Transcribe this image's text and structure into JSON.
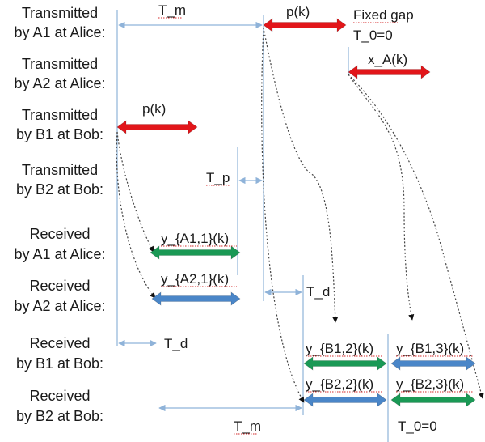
{
  "rows": [
    {
      "line1": "Transmitted",
      "line2": "by A1 at Alice:"
    },
    {
      "line1": "Transmitted",
      "line2": "by A2 at Alice:"
    },
    {
      "line1": "Transmitted",
      "line2": "by B1 at Bob:"
    },
    {
      "line1": "Transmitted",
      "line2": "by B2 at Bob:"
    },
    {
      "line1": "Received",
      "line2": "by A1 at Alice:"
    },
    {
      "line1": "Received",
      "line2": "by A2 at Alice:"
    },
    {
      "line1": "Received",
      "line2": "by B1 at Bob:"
    },
    {
      "line1": "Received",
      "line2": "by B2 at Bob:"
    }
  ],
  "labels": {
    "tm_top": "T_m",
    "pk_a1": "p(k)",
    "fixed_gap": "Fixed gap",
    "t0_top": "T_0=0",
    "xa": "x_A(k)",
    "pk_b1": "p(k)",
    "tp": "T_p",
    "ya1": "y_{A1,1}(k)",
    "ya2": "y_{A2,1}(k)",
    "td_mid": "T_d",
    "td_left": "T_d",
    "yb12": "y_{B1,2}(k)",
    "yb13": "y_{B1,3}(k)",
    "yb22": "y_{B2,2}(k)",
    "yb23": "y_{B2,3}(k)",
    "tm_bottom": "T_m",
    "t0_bottom": "T_0=0"
  },
  "colors": {
    "red": "#e2161a",
    "green": "#1a9955",
    "blue": "#4a86c8",
    "guide": "#8fb3d9",
    "curve": "#444444"
  }
}
